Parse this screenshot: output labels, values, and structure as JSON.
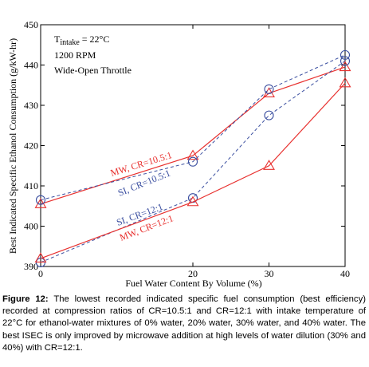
{
  "chart_data": {
    "type": "line",
    "ylabel": "Best Indicated Specific Ethanol Consumption (g/kW-hr)",
    "xlabel": "Fuel Water Content By Volume (%)",
    "xlim": [
      0,
      40
    ],
    "ylim": [
      390,
      450
    ],
    "xticks": [
      0,
      20,
      30,
      40
    ],
    "yticks": [
      390,
      400,
      410,
      420,
      430,
      440,
      450
    ],
    "grid": false,
    "conditions": {
      "intake_main": "T",
      "intake_sub": "intake",
      "intake_value": " = 22°C",
      "speed": "1200 RPM",
      "throttle": "Wide-Open Throttle"
    },
    "series": [
      {
        "name": "MW, CR=10.5:1",
        "color": "#e8312f",
        "dash": "solid",
        "marker": "triangle",
        "x": [
          0,
          20,
          30,
          40
        ],
        "values": [
          405.5,
          417.5,
          433,
          439.5
        ]
      },
      {
        "name": "SI, CR=10.5:1",
        "color": "#3b4fa0",
        "dash": "dashed",
        "marker": "circle",
        "x": [
          0,
          20,
          30,
          40
        ],
        "values": [
          406.5,
          416,
          434,
          442.5
        ]
      },
      {
        "name": "SI, CR=12:1",
        "color": "#3b4fa0",
        "dash": "dashed",
        "marker": "circle",
        "x": [
          0,
          20,
          30,
          40
        ],
        "values": [
          391,
          407,
          427.5,
          441
        ]
      },
      {
        "name": "MW, CR=12:1",
        "color": "#e8312f",
        "dash": "solid",
        "marker": "triangle",
        "x": [
          0,
          20,
          30,
          40
        ],
        "values": [
          392,
          406,
          415,
          435.5
        ]
      }
    ]
  },
  "caption": {
    "label": "Figure 12:",
    "text": " The lowest recorded indicated specific fuel consumption (best efficiency) recorded at compression ratios of CR=10.5:1 and CR=12:1 with intake temperature of 22°C for ethanol-water mixtures of 0% water, 20% water, 30% water, and 40% water. The best ISEC is only improved by microwave addition at high levels of water dilution (30% and 40%) with CR=12:1."
  }
}
